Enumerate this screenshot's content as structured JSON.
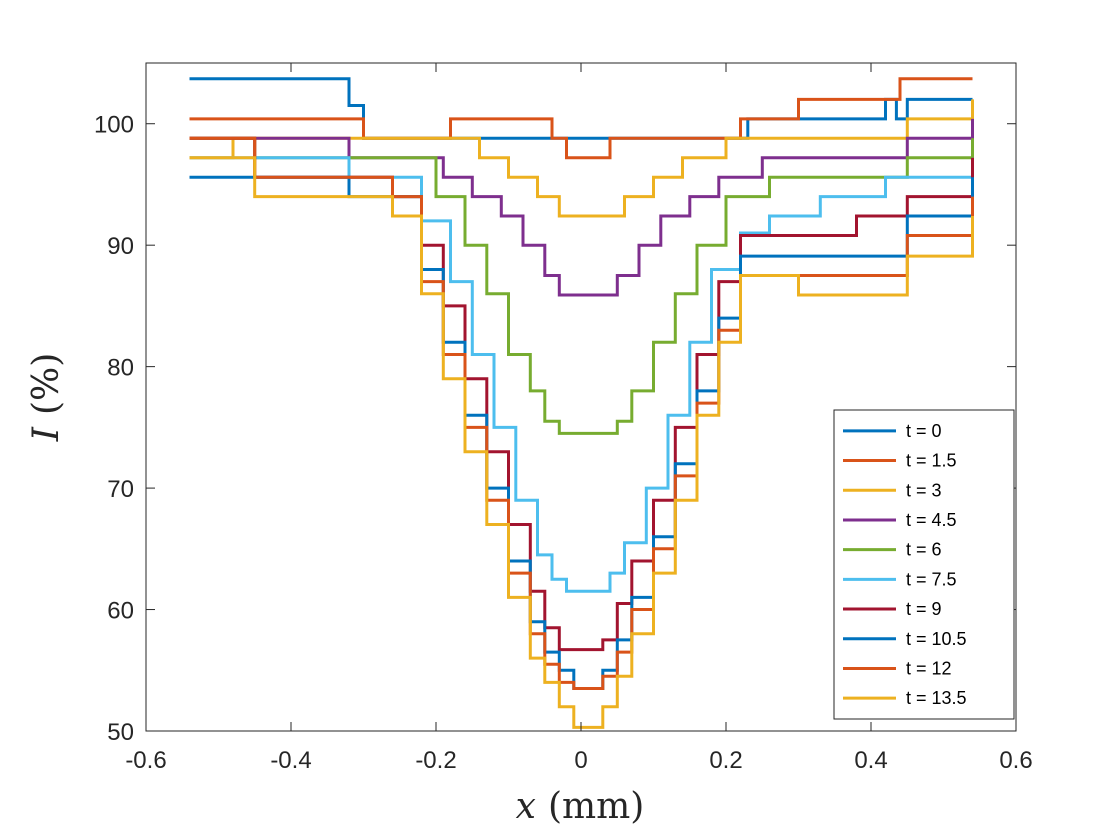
{
  "chart_data": {
    "type": "line",
    "title": "",
    "xlabel_var": "x",
    "xlabel_unit": "(mm)",
    "ylabel_var": "I",
    "ylabel_unit": "(%)",
    "xlim": [
      -0.6,
      0.6
    ],
    "ylim": [
      50,
      105
    ],
    "xticks": [
      -0.6,
      -0.4,
      -0.2,
      0,
      0.2,
      0.4,
      0.6
    ],
    "xtick_labels": [
      "-0.6",
      "-0.4",
      "-0.2",
      "0",
      "0.2",
      "0.4",
      "0.6"
    ],
    "yticks": [
      50,
      60,
      70,
      80,
      90,
      100
    ],
    "ytick_labels": [
      "50",
      "60",
      "70",
      "80",
      "90",
      "100"
    ],
    "grid": false,
    "legend_position": "bottom-right",
    "series": [
      {
        "name": "t = 0",
        "color": "#0072BD",
        "x": [
          -0.54,
          -0.32,
          -0.3,
          0.0,
          0.2,
          0.23,
          0.3,
          0.38,
          0.42,
          0.435,
          0.45,
          0.54
        ],
        "y": [
          103.7,
          101.5,
          98.8,
          98.8,
          98.8,
          100.4,
          100.4,
          100.4,
          102.0,
          100.4,
          102.0,
          102.0
        ]
      },
      {
        "name": "t = 1.5",
        "color": "#D95319",
        "x": [
          -0.54,
          -0.3,
          -0.24,
          -0.18,
          -0.13,
          -0.04,
          -0.02,
          0.0,
          0.02,
          0.04,
          0.15,
          0.22,
          0.3,
          0.38,
          0.44,
          0.54
        ],
        "y": [
          100.4,
          98.8,
          98.8,
          100.4,
          100.4,
          98.8,
          97.2,
          97.2,
          97.2,
          98.8,
          98.8,
          100.4,
          102.0,
          102.0,
          103.7,
          103.7
        ]
      },
      {
        "name": "t = 3",
        "color": "#EDB120",
        "x": [
          -0.54,
          -0.48,
          -0.3,
          -0.2,
          -0.14,
          -0.1,
          -0.06,
          -0.03,
          0.0,
          0.03,
          0.06,
          0.1,
          0.14,
          0.2,
          0.3,
          0.45,
          0.54
        ],
        "y": [
          97.2,
          98.8,
          98.8,
          98.8,
          97.2,
          95.6,
          94.0,
          92.4,
          92.4,
          92.4,
          94.0,
          95.6,
          97.2,
          98.8,
          98.8,
          100.4,
          102.0
        ]
      },
      {
        "name": "t = 4.5",
        "color": "#7E2F8E",
        "x": [
          -0.54,
          -0.47,
          -0.32,
          -0.24,
          -0.19,
          -0.15,
          -0.11,
          -0.08,
          -0.05,
          -0.03,
          0.0,
          0.03,
          0.05,
          0.08,
          0.11,
          0.15,
          0.19,
          0.25,
          0.32,
          0.45,
          0.54
        ],
        "y": [
          98.8,
          98.8,
          97.2,
          97.2,
          95.6,
          94.0,
          92.4,
          90.0,
          87.5,
          85.9,
          85.9,
          85.9,
          87.5,
          90.0,
          92.4,
          94.0,
          95.6,
          97.2,
          97.2,
          98.8,
          100.4
        ]
      },
      {
        "name": "t = 6",
        "color": "#77AC30",
        "x": [
          -0.54,
          -0.45,
          -0.32,
          -0.24,
          -0.2,
          -0.16,
          -0.13,
          -0.1,
          -0.07,
          -0.05,
          -0.03,
          0.0,
          0.03,
          0.05,
          0.07,
          0.1,
          0.13,
          0.16,
          0.2,
          0.26,
          0.36,
          0.45,
          0.54
        ],
        "y": [
          98.8,
          97.2,
          97.2,
          97.2,
          94.0,
          90.0,
          86.0,
          81.0,
          78.0,
          75.5,
          74.5,
          74.5,
          74.5,
          75.5,
          78.0,
          82.0,
          86.0,
          90.0,
          94.0,
          95.6,
          95.6,
          97.2,
          98.8
        ]
      },
      {
        "name": "t = 7.5",
        "color": "#4DBEEE",
        "x": [
          -0.54,
          -0.45,
          -0.32,
          -0.26,
          -0.22,
          -0.18,
          -0.15,
          -0.12,
          -0.09,
          -0.06,
          -0.04,
          -0.02,
          0.0,
          0.02,
          0.04,
          0.06,
          0.09,
          0.12,
          0.15,
          0.18,
          0.22,
          0.26,
          0.33,
          0.42,
          0.54
        ],
        "y": [
          97.2,
          97.2,
          95.6,
          95.6,
          92.0,
          87.0,
          81.0,
          75.0,
          69.0,
          64.5,
          62.5,
          61.5,
          61.5,
          61.5,
          63.0,
          65.5,
          70.0,
          76.0,
          82.0,
          88.0,
          91.0,
          92.4,
          94.0,
          95.6,
          97.2
        ]
      },
      {
        "name": "t = 9",
        "color": "#A2142F",
        "x": [
          -0.54,
          -0.45,
          -0.35,
          -0.26,
          -0.22,
          -0.19,
          -0.16,
          -0.13,
          -0.1,
          -0.07,
          -0.05,
          -0.03,
          0.0,
          0.03,
          0.05,
          0.07,
          0.1,
          0.13,
          0.16,
          0.19,
          0.22,
          0.28,
          0.38,
          0.45,
          0.54
        ],
        "y": [
          98.8,
          95.6,
          95.6,
          94.0,
          90.0,
          85.0,
          79.0,
          73.0,
          67.0,
          61.5,
          58.5,
          56.7,
          56.7,
          57.5,
          60.5,
          64.0,
          69.0,
          75.0,
          81.0,
          87.0,
          90.8,
          90.8,
          92.4,
          94.0,
          97.2
        ]
      },
      {
        "name": "t = 10.5",
        "color": "#0072BD",
        "x": [
          -0.54,
          -0.45,
          -0.32,
          -0.26,
          -0.22,
          -0.19,
          -0.16,
          -0.13,
          -0.1,
          -0.07,
          -0.05,
          -0.03,
          -0.01,
          0.01,
          0.03,
          0.05,
          0.07,
          0.1,
          0.13,
          0.16,
          0.19,
          0.22,
          0.28,
          0.38,
          0.45,
          0.54
        ],
        "y": [
          95.6,
          95.6,
          94.0,
          94.0,
          88.0,
          82.0,
          76.0,
          70.0,
          64.0,
          59.0,
          56.5,
          55.0,
          53.5,
          53.5,
          55.0,
          57.5,
          61.0,
          66.0,
          72.0,
          78.0,
          84.0,
          89.1,
          89.1,
          89.1,
          92.4,
          95.6
        ]
      },
      {
        "name": "t = 12",
        "color": "#D95319",
        "x": [
          -0.54,
          -0.45,
          -0.32,
          -0.26,
          -0.22,
          -0.19,
          -0.16,
          -0.13,
          -0.1,
          -0.07,
          -0.05,
          -0.03,
          -0.01,
          0.01,
          0.03,
          0.05,
          0.07,
          0.1,
          0.13,
          0.16,
          0.19,
          0.22,
          0.28,
          0.38,
          0.45,
          0.54
        ],
        "y": [
          98.8,
          95.6,
          95.6,
          94.0,
          87.0,
          81.0,
          75.0,
          69.0,
          63.0,
          58.0,
          55.5,
          54.0,
          53.5,
          53.5,
          54.5,
          56.5,
          60.0,
          65.0,
          71.0,
          77.0,
          83.0,
          87.5,
          87.5,
          87.5,
          90.8,
          94.0
        ]
      },
      {
        "name": "t = 13.5",
        "color": "#EDB120",
        "x": [
          -0.54,
          -0.45,
          -0.32,
          -0.26,
          -0.22,
          -0.19,
          -0.16,
          -0.13,
          -0.1,
          -0.07,
          -0.05,
          -0.03,
          -0.01,
          0.01,
          0.03,
          0.05,
          0.07,
          0.1,
          0.13,
          0.16,
          0.19,
          0.22,
          0.26,
          0.3,
          0.38,
          0.45,
          0.54
        ],
        "y": [
          97.2,
          94.0,
          94.0,
          92.4,
          86.0,
          79.0,
          73.0,
          67.0,
          61.0,
          56.0,
          54.0,
          52.0,
          50.3,
          50.3,
          52.0,
          54.5,
          58.0,
          63.0,
          69.0,
          76.0,
          82.0,
          87.5,
          87.5,
          85.9,
          85.9,
          89.1,
          92.4
        ]
      }
    ]
  }
}
